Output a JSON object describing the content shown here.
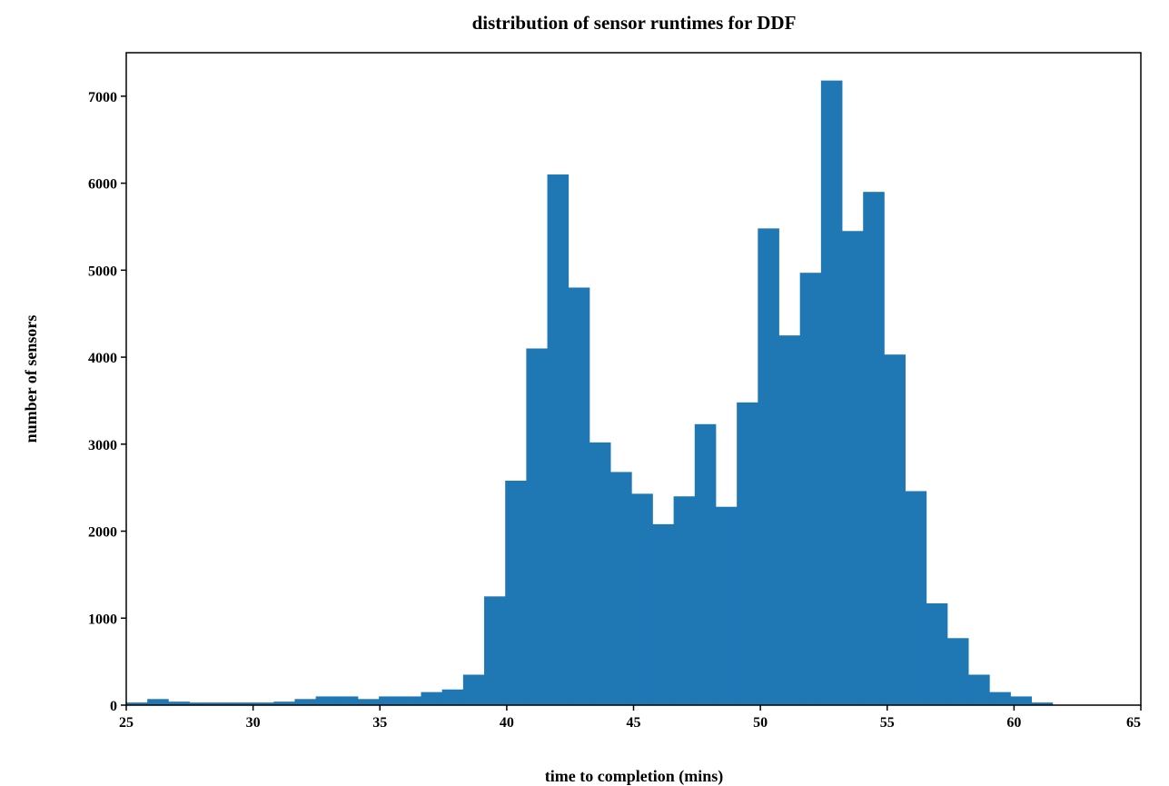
{
  "chart_data": {
    "type": "bar",
    "title": "distribution of sensor runtimes for DDF",
    "xlabel": "time to completion (mins)",
    "ylabel": "number of sensors",
    "xlim": [
      25,
      65
    ],
    "ylim": [
      0,
      7500
    ],
    "xticks": [
      "25",
      "30",
      "35",
      "40",
      "45",
      "50",
      "55",
      "60",
      "65"
    ],
    "yticks": [
      "0",
      "1000",
      "2000",
      "3000",
      "4000",
      "5000",
      "6000",
      "7000"
    ],
    "bar_color": "#1f77b4",
    "bin_width": 0.83,
    "bin_edges_start": 25,
    "values": [
      30,
      70,
      40,
      30,
      30,
      30,
      30,
      40,
      70,
      100,
      100,
      70,
      100,
      100,
      150,
      180,
      350,
      1250,
      2580,
      4100,
      6100,
      4800,
      3020,
      2680,
      2430,
      2080,
      2400,
      3230,
      2280,
      3480,
      5480,
      4250,
      4970,
      7180,
      5450,
      5900,
      4030,
      2460,
      1170,
      770,
      350,
      150,
      100,
      30,
      0,
      0,
      0,
      0
    ],
    "grid": false,
    "legend": "none"
  }
}
